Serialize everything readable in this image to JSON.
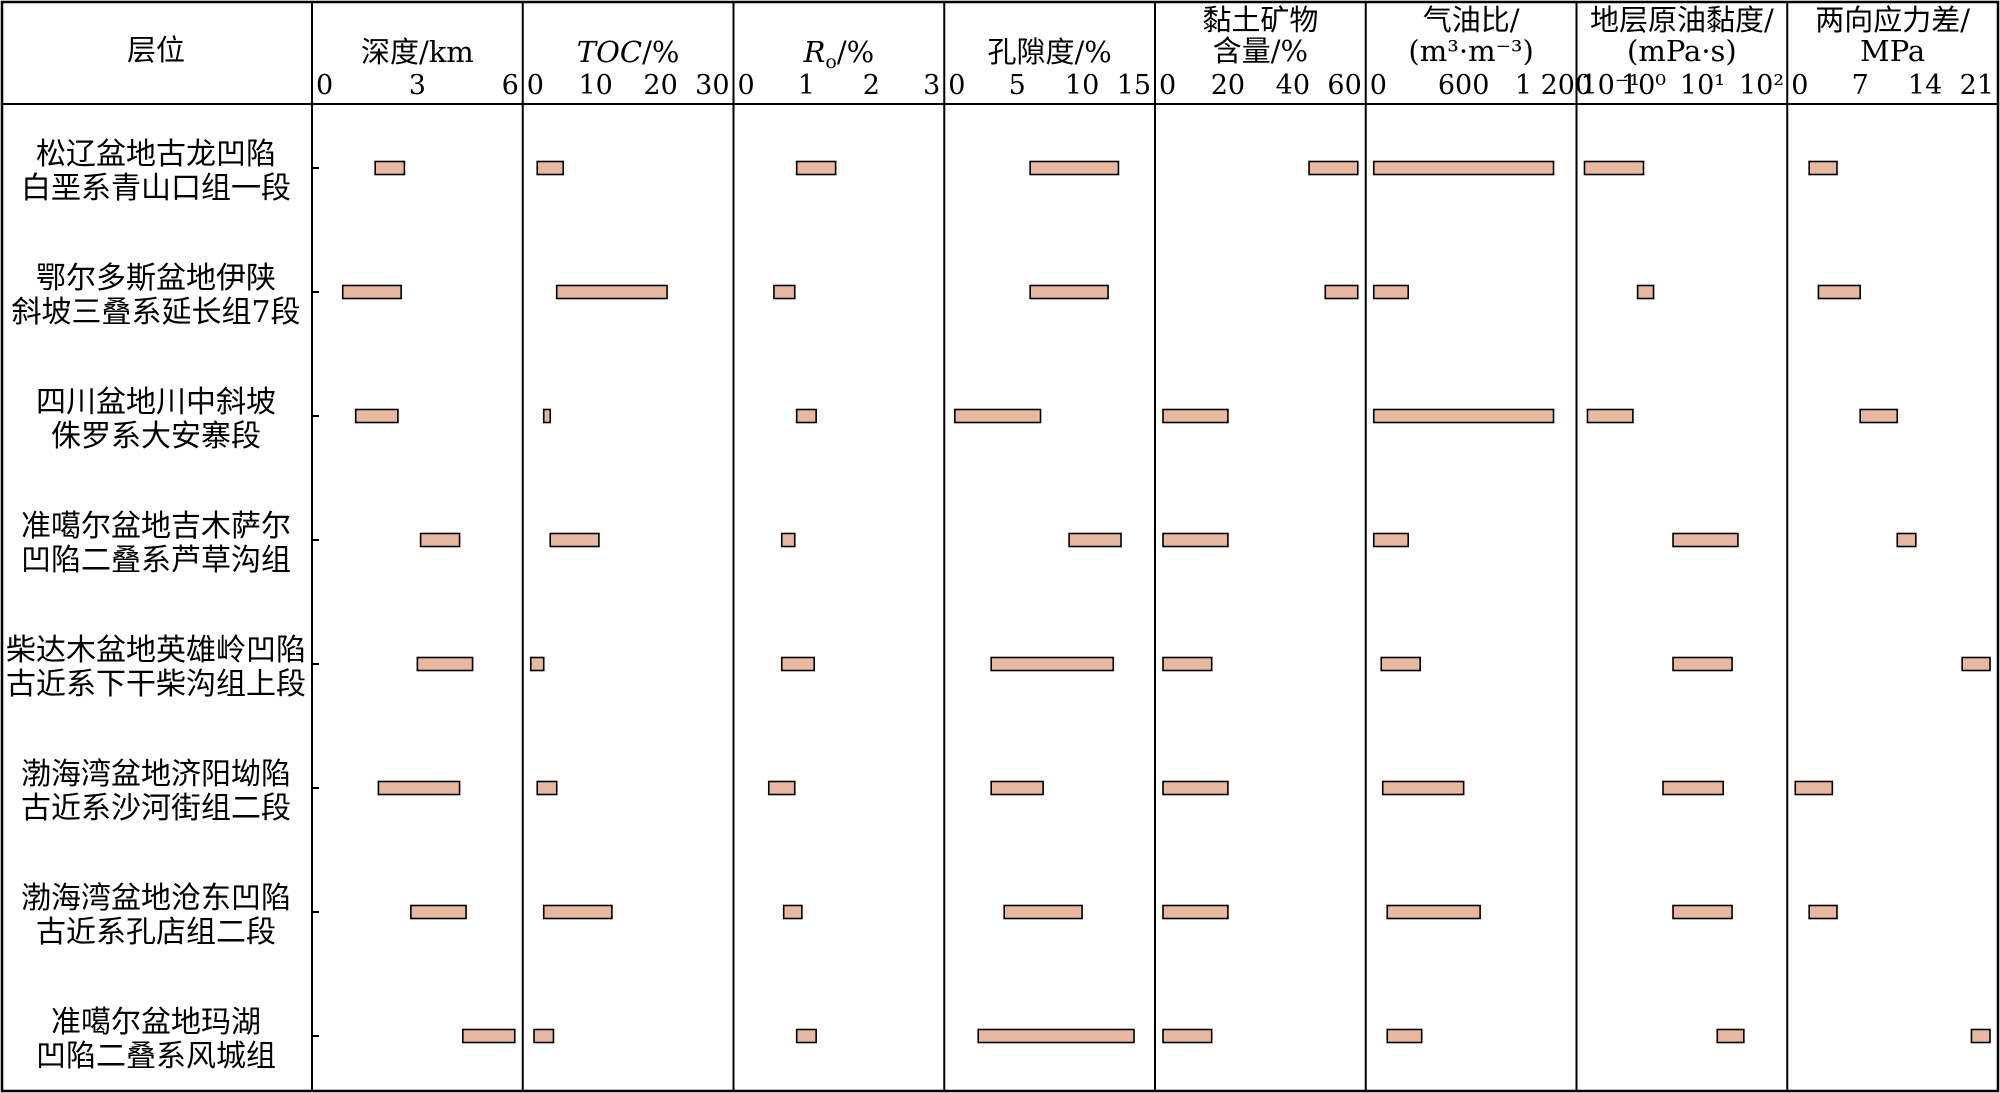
{
  "chart_data": {
    "type": "bar",
    "layer_header": "层位",
    "categories": [
      [
        "松辽盆地古龙凹陷",
        "白垩系青山口组一段"
      ],
      [
        "鄂尔多斯盆地伊陕",
        "斜坡三叠系延长组7段"
      ],
      [
        "四川盆地川中斜坡",
        "侏罗系大安寨段"
      ],
      [
        "准噶尔盆地吉木萨尔",
        "凹陷二叠系芦草沟组"
      ],
      [
        "柴达木盆地英雄岭凹陷",
        "古近系下干柴沟组上段"
      ],
      [
        "渤海湾盆地济阳坳陷",
        "古近系沙河街组二段"
      ],
      [
        "渤海湾盆地沧东凹陷",
        "古近系孔店组二段"
      ],
      [
        "准噶尔盆地玛湖",
        "凹陷二叠系风城组"
      ]
    ],
    "panels": [
      {
        "title": [
          "深度/km"
        ],
        "scale": "linear",
        "range": [
          0,
          6
        ],
        "ticks": [
          {
            "v": 0,
            "t": "0"
          },
          {
            "v": 3,
            "t": "3"
          },
          {
            "v": 6,
            "t": "6"
          }
        ],
        "ranges": [
          [
            1.7,
            2.6
          ],
          [
            0.7,
            2.5
          ],
          [
            1.1,
            2.4
          ],
          [
            3.1,
            4.3
          ],
          [
            3.0,
            4.7
          ],
          [
            1.8,
            4.3
          ],
          [
            2.8,
            4.5
          ],
          [
            4.4,
            6.0
          ]
        ]
      },
      {
        "title": [
          "TOC/%"
        ],
        "scale": "linear",
        "range": [
          0,
          30
        ],
        "ticks": [
          {
            "v": 0,
            "t": "0"
          },
          {
            "v": 10,
            "t": "10"
          },
          {
            "v": 20,
            "t": "20"
          },
          {
            "v": 30,
            "t": "30"
          }
        ],
        "ranges": [
          [
            1.0,
            5.0
          ],
          [
            4.0,
            21.0
          ],
          [
            2.0,
            3.0
          ],
          [
            3.0,
            10.5
          ],
          [
            0.0,
            2.0
          ],
          [
            1.0,
            4.0
          ],
          [
            2.0,
            12.5
          ],
          [
            0.5,
            3.5
          ]
        ]
      },
      {
        "title": [
          "Ro/%"
        ],
        "scale": "linear",
        "range": [
          0,
          3
        ],
        "ticks": [
          {
            "v": 0,
            "t": "0"
          },
          {
            "v": 1,
            "t": "1"
          },
          {
            "v": 2,
            "t": "2"
          },
          {
            "v": 3,
            "t": "3"
          }
        ],
        "ranges": [
          [
            0.85,
            1.45
          ],
          [
            0.5,
            0.82
          ],
          [
            0.85,
            1.15
          ],
          [
            0.62,
            0.82
          ],
          [
            0.62,
            1.12
          ],
          [
            0.42,
            0.82
          ],
          [
            0.65,
            0.93
          ],
          [
            0.85,
            1.15
          ]
        ]
      },
      {
        "title": [
          "孔隙度/%"
        ],
        "scale": "linear",
        "range": [
          0,
          15
        ],
        "ticks": [
          {
            "v": 0,
            "t": "0"
          },
          {
            "v": 5,
            "t": "5"
          },
          {
            "v": 10,
            "t": "10"
          },
          {
            "v": 15,
            "t": "15"
          }
        ],
        "ranges": [
          [
            6.0,
            12.8
          ],
          [
            6.0,
            12.0
          ],
          [
            0.2,
            6.8
          ],
          [
            9.0,
            13.0
          ],
          [
            3.0,
            12.4
          ],
          [
            3.0,
            7.0
          ],
          [
            4.0,
            10.0
          ],
          [
            2.0,
            14.0
          ]
        ]
      },
      {
        "title": [
          "黏土矿物",
          "含量/%"
        ],
        "scale": "linear",
        "range": [
          0,
          60
        ],
        "ticks": [
          {
            "v": 0,
            "t": "0"
          },
          {
            "v": 20,
            "t": "20"
          },
          {
            "v": 40,
            "t": "40"
          },
          {
            "v": 60,
            "t": "60"
          }
        ],
        "ranges": [
          [
            45.0,
            60.0
          ],
          [
            50.0,
            60.0
          ],
          [
            0.0,
            20.0
          ],
          [
            0.0,
            20.0
          ],
          [
            0.0,
            15.0
          ],
          [
            0.0,
            20.0
          ],
          [
            0.0,
            20.0
          ],
          [
            0.0,
            15.0
          ]
        ]
      },
      {
        "title": [
          "气油比/",
          "(m³·m⁻³)"
        ],
        "scale": "linear",
        "range": [
          0,
          1300
        ],
        "ticks": [
          {
            "v": 0,
            "t": "0"
          },
          {
            "v": 600,
            "t": "600"
          },
          {
            "v": 1200,
            "t": "1 200"
          }
        ],
        "ranges": [
          [
            0,
            1200
          ],
          [
            0,
            230
          ],
          [
            0,
            1200
          ],
          [
            0,
            230
          ],
          [
            50,
            310
          ],
          [
            60,
            600
          ],
          [
            90,
            710
          ],
          [
            90,
            320
          ]
        ]
      },
      {
        "title": [
          "地层原油黏度/",
          "(mPa·s)"
        ],
        "scale": "log",
        "range": [
          -1,
          2.3
        ],
        "ticks": [
          {
            "v": -1,
            "t": "10⁻¹"
          },
          {
            "v": 0,
            "t": "10⁰"
          },
          {
            "v": 1,
            "t": "10¹"
          },
          {
            "v": 2,
            "t": "10²"
          }
        ],
        "ranges": [
          [
            -1.0,
            0.0
          ],
          [
            -0.1,
            0.17
          ],
          [
            -0.95,
            -0.18
          ],
          [
            0.5,
            1.6
          ],
          [
            0.5,
            1.5
          ],
          [
            0.33,
            1.35
          ],
          [
            0.5,
            1.5
          ],
          [
            1.25,
            1.7
          ]
        ]
      },
      {
        "title": [
          "两向应力差/",
          "MPa"
        ],
        "scale": "linear",
        "range": [
          0,
          21
        ],
        "ticks": [
          {
            "v": 0,
            "t": "0"
          },
          {
            "v": 7,
            "t": "7"
          },
          {
            "v": 14,
            "t": "14"
          },
          {
            "v": 21,
            "t": "21"
          }
        ],
        "ranges": [
          [
            1.5,
            4.5
          ],
          [
            2.5,
            7.0
          ],
          [
            7.0,
            11.0
          ],
          [
            11.0,
            13.0
          ],
          [
            18.0,
            21.5
          ],
          [
            0.0,
            4.0
          ],
          [
            1.5,
            4.5
          ],
          [
            19.0,
            22.0
          ]
        ]
      }
    ]
  }
}
